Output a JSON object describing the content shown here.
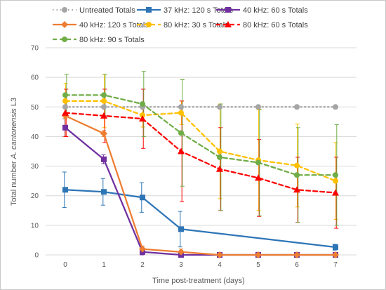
{
  "chart_data": {
    "type": "line",
    "xlabel": "Time post-treatment (days)",
    "ylabel_prefix": "Total number ",
    "ylabel_species": "A. cantonensis",
    "ylabel_suffix": " L3",
    "categories": [
      "0",
      "1",
      "2",
      "3",
      "4",
      "5",
      "6",
      "7"
    ],
    "x": [
      0,
      1,
      2,
      3,
      4,
      5,
      6,
      7
    ],
    "ylim": [
      0,
      70
    ],
    "yticks": [
      "0",
      "10",
      "20",
      "30",
      "40",
      "50",
      "60",
      "70"
    ],
    "grid": true,
    "legend_position": "top",
    "series": [
      {
        "name": "Untreated Totals",
        "color": "#a5a5a5",
        "dash": "dotted",
        "marker": "circle",
        "x": [
          0,
          1,
          2,
          3,
          4,
          5,
          6,
          7
        ],
        "values": [
          50,
          50,
          50,
          50,
          50,
          50,
          50,
          50
        ],
        "err": [
          0,
          0,
          0,
          0,
          0,
          0,
          0,
          0
        ]
      },
      {
        "name": "37 kHz: 120 s Totals",
        "color": "#2e75b6",
        "dash": "solid",
        "marker": "square",
        "x": [
          0,
          1,
          2,
          3,
          7
        ],
        "values": [
          22,
          21.3,
          19.4,
          8.7,
          2.6
        ],
        "err": [
          6,
          4.5,
          5,
          6,
          1
        ]
      },
      {
        "name": "40 kHz: 60 s Totals",
        "color": "#7030a0",
        "dash": "solid",
        "marker": "square",
        "x": [
          0,
          1,
          2,
          3,
          4,
          5,
          6,
          7
        ],
        "values": [
          43,
          32.3,
          1,
          0,
          0,
          0,
          0,
          0
        ],
        "err": [
          3,
          1.5,
          1,
          0,
          0,
          0,
          0,
          0
        ]
      },
      {
        "name": "40 kHz: 120 s Totals",
        "color": "#ed7d31",
        "dash": "solid",
        "marker": "diamond",
        "x": [
          0,
          1,
          2,
          3,
          4,
          5,
          6,
          7
        ],
        "values": [
          47,
          41,
          2,
          1,
          0,
          0,
          0,
          0
        ],
        "err": [
          7,
          1,
          1,
          1,
          0,
          0,
          0,
          0
        ]
      },
      {
        "name": "80 kHz: 30 s Totals",
        "color": "#ffc000",
        "dash": "dashed",
        "marker": "circle",
        "x": [
          0,
          1,
          2,
          3,
          4,
          5,
          6,
          7
        ],
        "values": [
          52,
          52,
          47.2,
          48,
          35,
          32,
          30.2,
          25
        ],
        "err": [
          6,
          9,
          4,
          4,
          16,
          17,
          14,
          13
        ]
      },
      {
        "name": "80 kHz: 60 s Totals",
        "color": "#ff0000",
        "dash": "dashed",
        "marker": "triangle",
        "x": [
          0,
          1,
          2,
          3,
          4,
          5,
          6,
          7
        ],
        "values": [
          48,
          47,
          46,
          35,
          29,
          26,
          22,
          21
        ],
        "err": [
          8,
          9,
          10,
          17,
          14,
          13,
          11,
          12
        ]
      },
      {
        "name": "80 kHz: 90 s Totals",
        "color": "#70ad47",
        "dash": "dashed",
        "marker": "circle",
        "x": [
          0,
          1,
          2,
          3,
          4,
          5,
          6,
          7
        ],
        "values": [
          54,
          54,
          51,
          41.2,
          33,
          31.2,
          27,
          27
        ],
        "err": [
          7,
          7,
          11,
          18,
          18,
          18,
          16,
          17
        ]
      }
    ],
    "legend_rows": [
      [
        "Untreated Totals",
        "37 kHz: 120 s Totals",
        "40 kHz: 60 s Totals"
      ],
      [
        "40 kHz: 120 s Totals",
        "80 kHz: 30 s Totals",
        "80 kHz: 60 s Totals"
      ],
      [
        "80 kHz: 90 s Totals"
      ]
    ]
  }
}
